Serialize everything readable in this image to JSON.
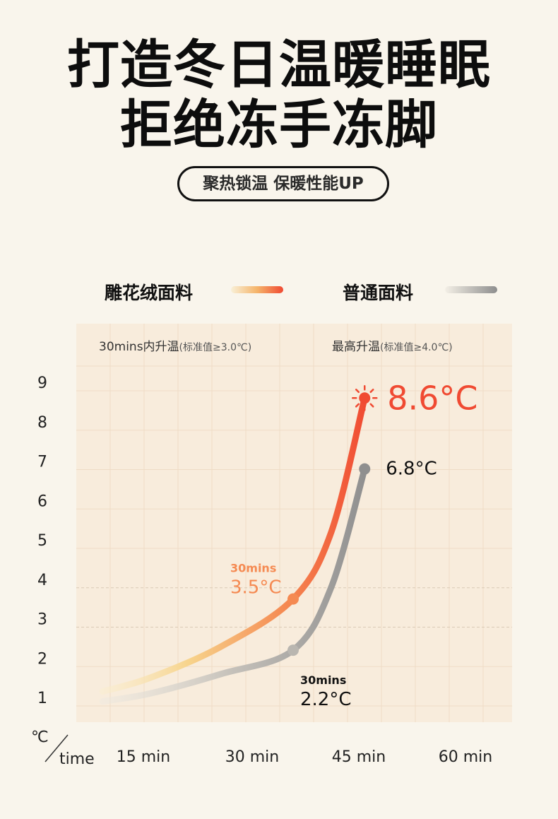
{
  "header": {
    "title_line1": "打造冬日温暖睡眠",
    "title_line2": "拒绝冻手冻脚",
    "tagline": "聚热锁温 保暖性能UP"
  },
  "colors": {
    "background": "#f9f5ec",
    "panel": "#f8ecdc",
    "fabric_start": "#f7e3a6",
    "fabric_mid": "#f5a35e",
    "fabric_end": "#f04a32",
    "plain_start": "#ebe6dc",
    "plain_end": "#909090"
  },
  "chart_data": {
    "type": "line",
    "legend": [
      {
        "name": "雕花绒面料"
      },
      {
        "name": "普通面料"
      }
    ],
    "legend_placement": "top",
    "header_left": {
      "main": "30mins内升温",
      "note": "(标准值≥3.0℃)"
    },
    "header_right": {
      "main": "最高升温",
      "note": "(标准值≥4.0℃)"
    },
    "yunit": "℃",
    "xunit": "time",
    "yticks": [
      "1",
      "2",
      "3",
      "4",
      "5",
      "6",
      "7",
      "8",
      "9"
    ],
    "xticks": [
      "15 min",
      "30 min",
      "45 min",
      "60 min"
    ],
    "ylim": [
      1,
      9
    ],
    "grid": true,
    "dashed_reference_lines": [
      3,
      4
    ],
    "series": [
      {
        "name": "雕花绒面料",
        "points": [
          [
            -10,
            1.15
          ],
          [
            0,
            1.5
          ],
          [
            15,
            2.3
          ],
          [
            30,
            3.5
          ],
          [
            38,
            5.2
          ],
          [
            45,
            8.6
          ]
        ],
        "annotations": [
          {
            "x": 30,
            "y": 3.5,
            "label_top": "30mins",
            "label": "3.5°C"
          },
          {
            "x": 45,
            "y": 8.6,
            "label": "8.6°C",
            "icon": "sun-icon"
          }
        ]
      },
      {
        "name": "普通面料",
        "points": [
          [
            -10,
            0.9
          ],
          [
            0,
            1.1
          ],
          [
            15,
            1.6
          ],
          [
            30,
            2.2
          ],
          [
            38,
            3.8
          ],
          [
            45,
            6.8
          ]
        ],
        "annotations": [
          {
            "x": 30,
            "y": 2.2,
            "label_top": "30mins",
            "label": "2.2°C"
          },
          {
            "x": 45,
            "y": 6.8,
            "label": "6.8°C"
          }
        ]
      }
    ]
  }
}
